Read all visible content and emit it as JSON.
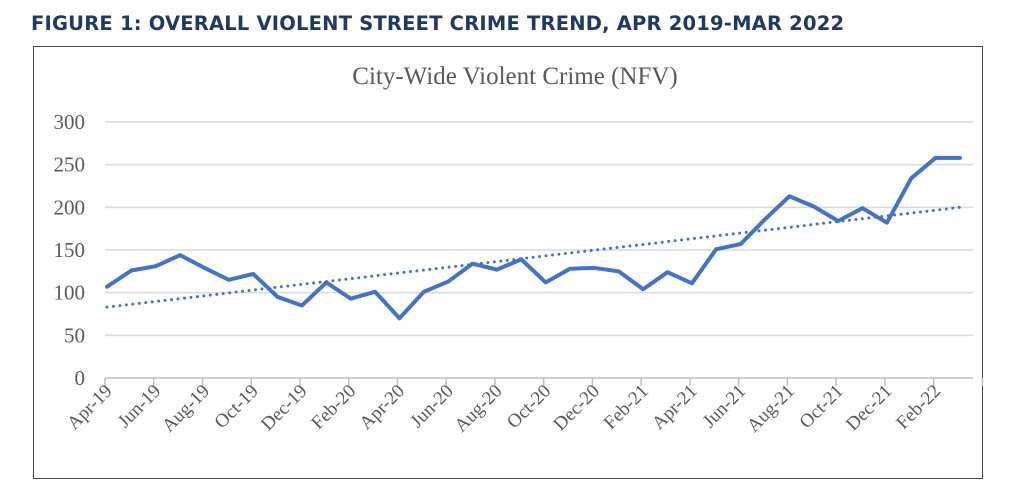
{
  "figure_title": "FIGURE 1:  OVERALL VIOLENT STREET CRIME TREND, APR 2019-MAR 2022",
  "chart_data": {
    "type": "line",
    "title": "City-Wide Violent Crime (NFV)",
    "xlabel": "",
    "ylabel": "",
    "ylim": [
      0,
      300
    ],
    "yticks": [
      0,
      50,
      100,
      150,
      200,
      250,
      300
    ],
    "grid": true,
    "legend": "none",
    "categories": [
      "Apr-19",
      "May-19",
      "Jun-19",
      "Jul-19",
      "Aug-19",
      "Sep-19",
      "Oct-19",
      "Nov-19",
      "Dec-19",
      "Jan-20",
      "Feb-20",
      "Mar-20",
      "Apr-20",
      "May-20",
      "Jun-20",
      "Jul-20",
      "Aug-20",
      "Sep-20",
      "Oct-20",
      "Nov-20",
      "Dec-20",
      "Jan-21",
      "Feb-21",
      "Mar-21",
      "Apr-21",
      "May-21",
      "Jun-21",
      "Jul-21",
      "Aug-21",
      "Sep-21",
      "Oct-21",
      "Nov-21",
      "Dec-21",
      "Jan-22",
      "Feb-22",
      "Mar-22"
    ],
    "xtick_labels": [
      "Apr-19",
      "Jun-19",
      "Aug-19",
      "Oct-19",
      "Dec-19",
      "Feb-20",
      "Apr-20",
      "Jun-20",
      "Aug-20",
      "Oct-20",
      "Dec-20",
      "Feb-21",
      "Apr-21",
      "Jun-21",
      "Aug-21",
      "Oct-21",
      "Dec-21",
      "Feb-22"
    ],
    "series": [
      {
        "values": [
          107,
          126,
          131,
          144,
          129,
          115,
          122,
          95,
          85,
          112,
          93,
          101,
          70,
          101,
          113,
          134,
          127,
          139,
          112,
          128,
          129,
          125,
          104,
          124,
          111,
          151,
          157,
          186,
          213,
          201,
          184,
          199,
          182,
          234,
          258,
          258
        ],
        "color": "#4472c4",
        "style": "solid"
      }
    ],
    "trendline": {
      "type": "linear",
      "start": 83,
      "end": 200,
      "color": "#4472c4",
      "style": "dotted"
    }
  }
}
